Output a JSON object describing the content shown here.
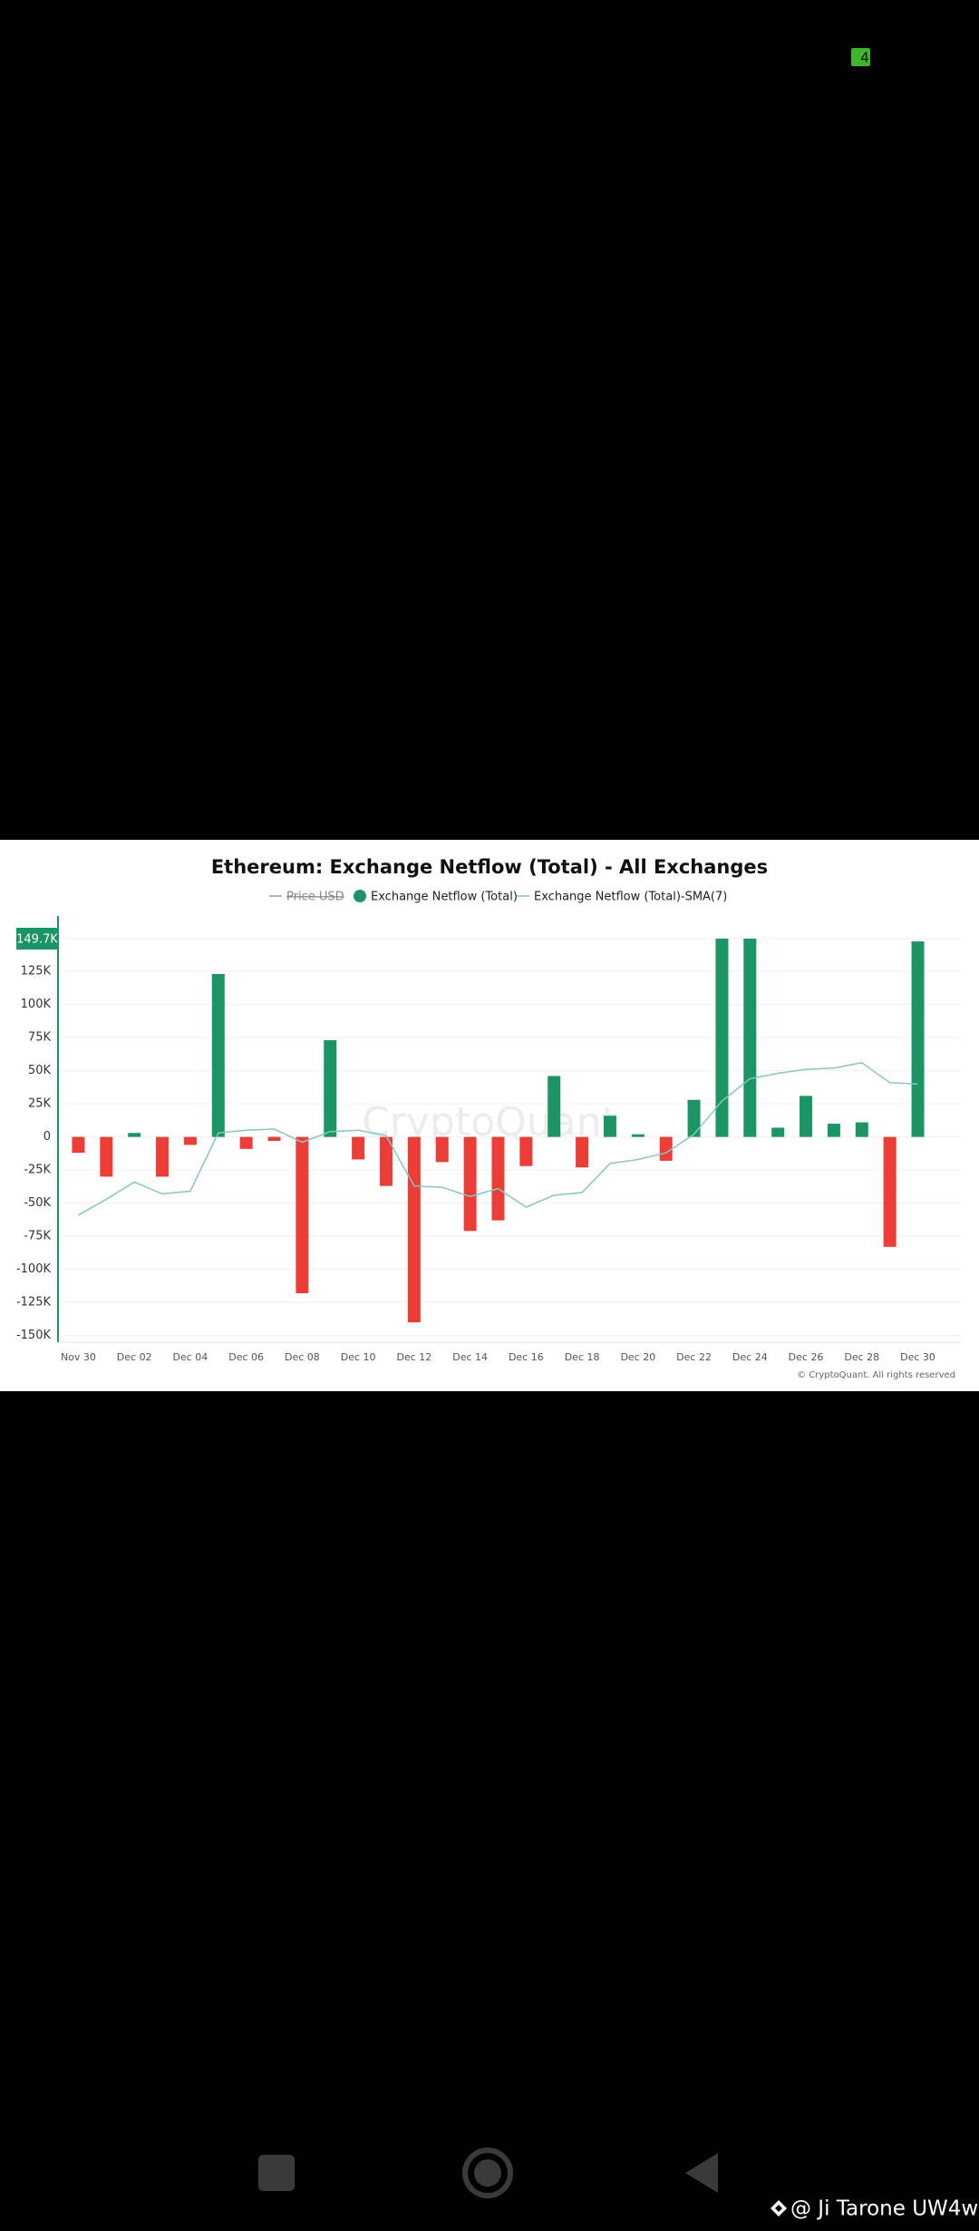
{
  "status_bar": {
    "badge": "4"
  },
  "chart_data": {
    "type": "bar",
    "title": "Ethereum: Exchange Netflow (Total) - All Exchanges",
    "watermark": "CryptoQuant",
    "copyright": "© CryptoQuant. All rights reserved",
    "categories": [
      "Nov 30",
      null,
      "Dec 02",
      null,
      "Dec 04",
      null,
      "Dec 06",
      null,
      "Dec 08",
      null,
      "Dec 10",
      null,
      "Dec 12",
      null,
      "Dec 14",
      null,
      "Dec 16",
      null,
      "Dec 18",
      null,
      "Dec 20",
      null,
      "Dec 22",
      null,
      "Dec 24",
      null,
      "Dec 26",
      null,
      "Dec 28",
      null,
      "Dec 30"
    ],
    "series": [
      {
        "name": "Price USD",
        "color": "#9a9a9a",
        "visible": false
      },
      {
        "name": "Exchange Netflow (Total)",
        "type": "bar",
        "color": "#1b9563",
        "negative_color": "#ec3d36",
        "values": [
          -12000,
          -30000,
          3000,
          -30000,
          -6000,
          123000,
          -9000,
          -3000,
          -118000,
          73000,
          -17000,
          -37000,
          -140000,
          -19000,
          -71000,
          -63000,
          -22000,
          46000,
          -23000,
          16000,
          2000,
          -18000,
          28000,
          149700,
          149700,
          7000,
          31000,
          10000,
          11000,
          -83000,
          147600
        ]
      },
      {
        "name": "Exchange Netflow (Total)-SMA(7)",
        "type": "line",
        "color": "#86c6c4",
        "values": [
          -59000,
          -47000,
          -34000,
          -43000,
          -41000,
          3000,
          5000,
          6000,
          -4000,
          4000,
          5000,
          1000,
          -37000,
          -38000,
          -45000,
          -39000,
          -53000,
          -44000,
          -42000,
          -20000,
          -17000,
          -12000,
          2000,
          27000,
          44000,
          48000,
          51000,
          52000,
          56000,
          41000,
          40000
        ]
      }
    ],
    "ylim": [
      -155000,
      149700
    ],
    "yticks": [
      {
        "value": -150000,
        "label": "-150K"
      },
      {
        "value": -125000,
        "label": "-125K"
      },
      {
        "value": -100000,
        "label": "-100K"
      },
      {
        "value": -75000,
        "label": "-75K"
      },
      {
        "value": -50000,
        "label": "-50K"
      },
      {
        "value": -25000,
        "label": "-25K"
      },
      0,
      {
        "value": 25000,
        "label": "25K"
      },
      {
        "value": 50000,
        "label": "50K"
      },
      {
        "value": 75000,
        "label": "75K"
      },
      {
        "value": 100000,
        "label": "100K"
      },
      {
        "value": 125000,
        "label": "125K"
      },
      {
        "value": 149700,
        "label": "149.7K"
      }
    ],
    "grid": true
  },
  "footer": {
    "handle": "@ Ji Tarone UW4w"
  }
}
